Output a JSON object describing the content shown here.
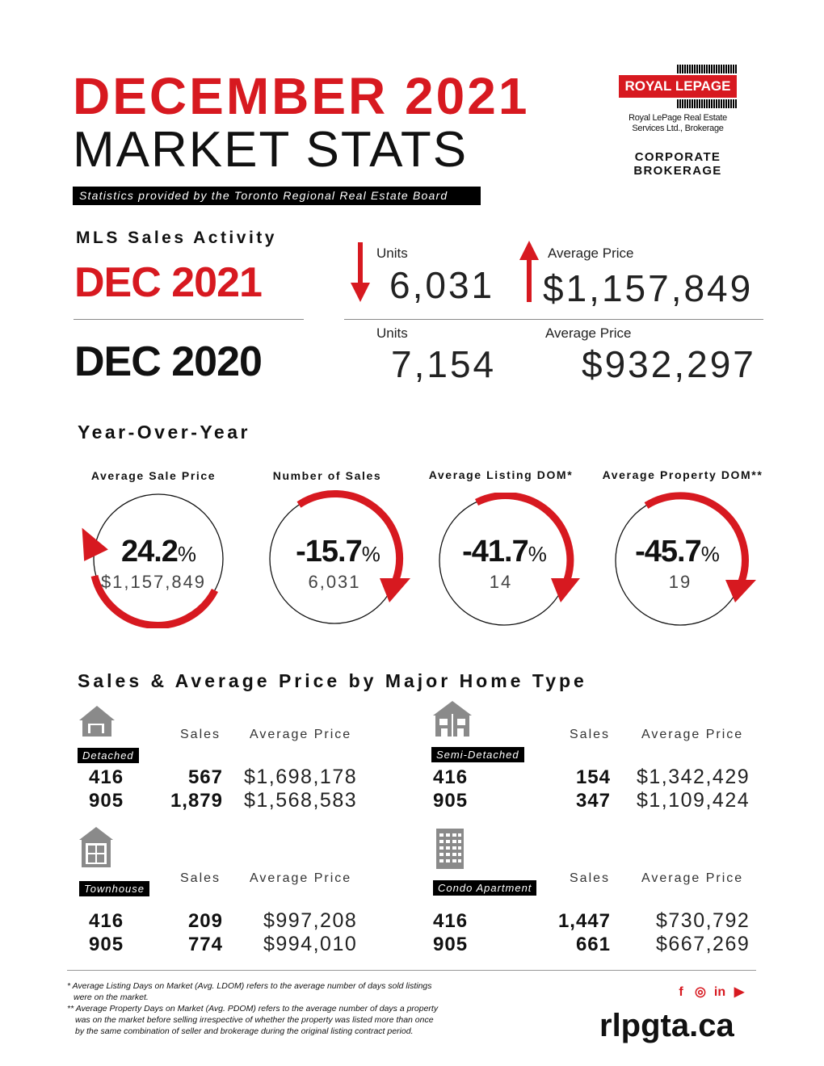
{
  "header": {
    "title_line1": "DECEMBER 2021",
    "title_line2": "MARKET STATS",
    "source": "Statistics provided by the Toronto Regional Real Estate Board"
  },
  "logo": {
    "name": "ROYAL LEPAGE",
    "subtitle_line1": "Royal LePage Real Estate",
    "subtitle_line2": "Services Ltd., Brokerage",
    "corp_line1": "CORPORATE",
    "corp_line2": "BROKERAGE"
  },
  "mls": {
    "heading": "MLS Sales Activity",
    "current": {
      "label": "DEC 2021",
      "units_label": "Units",
      "units": "6,031",
      "price_label": "Average Price",
      "price": "$1,157,849"
    },
    "previous": {
      "label": "DEC 2020",
      "units_label": "Units",
      "units": "7,154",
      "price_label": "Average Price",
      "price": "$932,297"
    }
  },
  "yoy": {
    "heading": "Year-Over-Year",
    "items": [
      {
        "label": "Average Sale Price",
        "pct": "24.2",
        "unit": "%",
        "sub": "$1,157,849",
        "direction": "up"
      },
      {
        "label": "Number of Sales",
        "pct": "-15.7",
        "unit": "%",
        "sub": "6,031",
        "direction": "down"
      },
      {
        "label": "Average Listing DOM*",
        "pct": "-41.7",
        "unit": "%",
        "sub": "14",
        "direction": "down"
      },
      {
        "label": "Average Property DOM**",
        "pct": "-45.7",
        "unit": "%",
        "sub": "19",
        "direction": "down"
      }
    ]
  },
  "home_types": {
    "heading": "Sales & Average Price by Major Home Type",
    "sales_label": "Sales",
    "price_label": "Average Price",
    "types": [
      {
        "name": "Detached",
        "icon": "house-icon",
        "rows": [
          {
            "area": "416",
            "sales": "567",
            "price": "$1,698,178"
          },
          {
            "area": "905",
            "sales": "1,879",
            "price": "$1,568,583"
          }
        ]
      },
      {
        "name": "Semi-Detached",
        "icon": "semi-detached-icon",
        "rows": [
          {
            "area": "416",
            "sales": "154",
            "price": "$1,342,429"
          },
          {
            "area": "905",
            "sales": "347",
            "price": "$1,109,424"
          }
        ]
      },
      {
        "name": "Townhouse",
        "icon": "townhouse-icon",
        "rows": [
          {
            "area": "416",
            "sales": "209",
            "price": "$997,208"
          },
          {
            "area": "905",
            "sales": "774",
            "price": "$994,010"
          }
        ]
      },
      {
        "name": "Condo Apartment",
        "icon": "condo-building-icon",
        "rows": [
          {
            "area": "416",
            "sales": "1,447",
            "price": "$730,792"
          },
          {
            "area": "905",
            "sales": "661",
            "price": "$667,269"
          }
        ]
      }
    ]
  },
  "footer": {
    "note1_line1": "* Average Listing Days on Market (Avg. LDOM) refers to the average number of days sold listings",
    "note1_line2": "were on the market.",
    "note2_line1": "** Average Property Days on Market (Avg. PDOM) refers to the average number of days a property",
    "note2_line2": "was on the market before selling irrespective of whether the property was listed more than once",
    "note2_line3": "by the same combination of seller and brokerage during the original listing contract period.",
    "website": "rlpgta.ca",
    "social": [
      "facebook-icon",
      "instagram-icon",
      "linkedin-icon",
      "youtube-icon"
    ],
    "accent": "#d71920"
  }
}
